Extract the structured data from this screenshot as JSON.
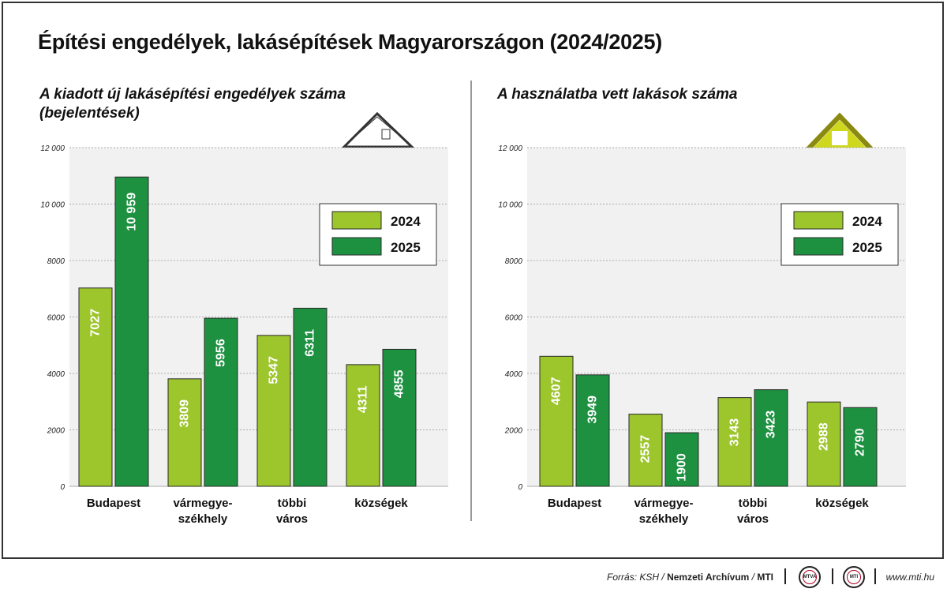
{
  "title": "Építési engedélyek, lakásépítések Magyarországon (2024/2025)",
  "source": {
    "prefix": "Forrás: KSH / ",
    "archive": "Nemzeti Archívum",
    "sep": " / ",
    "agency": "MTI",
    "logo1": "MTVA",
    "logo2": "MTI",
    "website": "www.mti.hu"
  },
  "colors": {
    "y2024": "#9dc52c",
    "y2025": "#1e9141",
    "house_outline": "#333333",
    "house_yellow": "#cfd81c"
  },
  "icons": {
    "left": "house-section-icon",
    "right": "yellow-house-icon"
  },
  "chart_data": [
    {
      "type": "bar",
      "title": "A kiadott új lakásépítési engedélyek száma",
      "title_line2": "(bejelentések)",
      "categories": [
        [
          "Budapest"
        ],
        [
          "vármegye-",
          "székhely"
        ],
        [
          "többi",
          "város"
        ],
        [
          "községek"
        ]
      ],
      "series": [
        {
          "name": "2024",
          "values": [
            7027,
            3809,
            5347,
            4311
          ],
          "labels": [
            "7027",
            "3809",
            "5347",
            "4311"
          ]
        },
        {
          "name": "2025",
          "values": [
            10959,
            5956,
            6311,
            4855
          ],
          "labels": [
            "10 959",
            "5956",
            "6311",
            "4855"
          ]
        }
      ],
      "ylim": [
        0,
        12000
      ],
      "yticks": [
        0,
        2000,
        4000,
        6000,
        8000,
        10000,
        12000
      ],
      "ytick_labels": [
        "0",
        "2000",
        "4000",
        "6000",
        "8000",
        "10 000",
        "12 000"
      ],
      "grid": true,
      "legend": "top-right"
    },
    {
      "type": "bar",
      "title": "A használatba vett lakások száma",
      "title_line2": "",
      "categories": [
        [
          "Budapest"
        ],
        [
          "vármegye-",
          "székhely"
        ],
        [
          "többi",
          "város"
        ],
        [
          "községek"
        ]
      ],
      "series": [
        {
          "name": "2024",
          "values": [
            4607,
            2557,
            3143,
            2988
          ],
          "labels": [
            "4607",
            "2557",
            "3143",
            "2988"
          ]
        },
        {
          "name": "2025",
          "values": [
            3949,
            1900,
            3423,
            2790
          ],
          "labels": [
            "3949",
            "1900",
            "3423",
            "2790"
          ]
        }
      ],
      "ylim": [
        0,
        12000
      ],
      "yticks": [
        0,
        2000,
        4000,
        6000,
        8000,
        10000,
        12000
      ],
      "ytick_labels": [
        "0",
        "2000",
        "4000",
        "6000",
        "8000",
        "10 000",
        "12 000"
      ],
      "grid": true,
      "legend": "top-right"
    }
  ]
}
